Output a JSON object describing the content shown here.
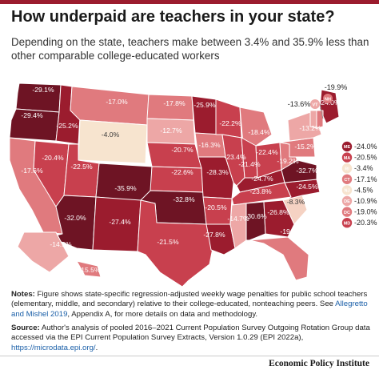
{
  "title": "How underpaid are teachers in your state?",
  "subtitle": "Depending on the state, teachers make between 3.4% and 35.9% less than other comparable college-educated workers",
  "colors": {
    "darkest": "#6e1424",
    "dark": "#9b1c2e",
    "mid": "#c8404e",
    "light": "#e07a7e",
    "lighter": "#eda7a6",
    "lightest": "#f5d2c3",
    "lowest": "#f7e4cf",
    "border": "#ffffff",
    "accent": "#9b1c2e"
  },
  "states": [
    {
      "id": "WA",
      "value": "-29.1%",
      "label": "-29.1%"
    },
    {
      "id": "OR",
      "value": "-29.4%",
      "label": "-29.4%"
    },
    {
      "id": "CA",
      "value": "-17.6%",
      "label": "-17.6%"
    },
    {
      "id": "NV",
      "value": "-20.4%",
      "label": "-20.4%"
    },
    {
      "id": "ID",
      "value": "-25.2%",
      "label": "-25.2%"
    },
    {
      "id": "MT",
      "value": "-17.0%",
      "label": "-17.0%"
    },
    {
      "id": "WY",
      "value": "-4.0%",
      "label": "-4.0%"
    },
    {
      "id": "UT",
      "value": "-22.5%",
      "label": "-22.5%"
    },
    {
      "id": "AZ",
      "value": "-32.0%",
      "label": "-32.0%"
    },
    {
      "id": "CO",
      "value": "-35.9%",
      "label": "-35.9%"
    },
    {
      "id": "NM",
      "value": "-27.4%",
      "label": "-27.4%"
    },
    {
      "id": "ND",
      "value": "-17.8%",
      "label": "-17.8%"
    },
    {
      "id": "SD",
      "value": "-12.7%",
      "label": "-12.7%"
    },
    {
      "id": "NE",
      "value": "-20.7%",
      "label": "-20.7%"
    },
    {
      "id": "KS",
      "value": "-22.6%",
      "label": "-22.6%"
    },
    {
      "id": "OK",
      "value": "-32.8%",
      "label": "-32.8%"
    },
    {
      "id": "TX",
      "value": "-21.5%",
      "label": "-21.5%"
    },
    {
      "id": "MN",
      "value": "-25.9%",
      "label": "-25.9%"
    },
    {
      "id": "IA",
      "value": "-16.3%",
      "label": "-16.3%"
    },
    {
      "id": "MO",
      "value": "-28.3%",
      "label": "-28.3%"
    },
    {
      "id": "AR",
      "value": "-20.5%",
      "label": "-20.5%"
    },
    {
      "id": "LA",
      "value": "-27.8%",
      "label": "-27.8%"
    },
    {
      "id": "WI",
      "value": "-22.2%",
      "label": "-22.2%"
    },
    {
      "id": "IL",
      "value": "-23.4%",
      "label": "-23.4%"
    },
    {
      "id": "MI",
      "value": "-18.4%",
      "label": "-18.4%"
    },
    {
      "id": "IN",
      "value": "-21.4%",
      "label": "-21.4%"
    },
    {
      "id": "OH",
      "value": "-22.4%",
      "label": "-22.4%"
    },
    {
      "id": "KY",
      "value": "-24.7%",
      "label": "-24.7%"
    },
    {
      "id": "TN",
      "value": "-23.8%",
      "label": "-23.8%"
    },
    {
      "id": "MS",
      "value": "-14.7%",
      "label": "-14.7%"
    },
    {
      "id": "AL",
      "value": "-30.6%",
      "label": "-30.6%"
    },
    {
      "id": "GA",
      "value": "-26.8%",
      "label": "-26.8%"
    },
    {
      "id": "FL",
      "value": "-19.6%",
      "label": "-19.6%"
    },
    {
      "id": "SC",
      "value": "-8.3%",
      "label": "-8.3%"
    },
    {
      "id": "NC",
      "value": "-24.5%",
      "label": "-24.5%"
    },
    {
      "id": "VA",
      "value": "-32.7%",
      "label": "-32.7%"
    },
    {
      "id": "WV",
      "value": "-19.2%",
      "label": "-19.2%"
    },
    {
      "id": "PA",
      "value": "-15.2%",
      "label": "-15.2%"
    },
    {
      "id": "NY",
      "value": "-13.2%",
      "label": "-13.2%"
    },
    {
      "id": "ME",
      "value": "-24.0%",
      "label": "-24.0%"
    },
    {
      "id": "AK",
      "value": "-14.9%",
      "label": "-14.9%"
    },
    {
      "id": "HI",
      "value": "-15.5%",
      "label": "-15.5%"
    },
    {
      "id": "NH",
      "value": "-19.9%",
      "label": "-19.9%"
    },
    {
      "id": "VT",
      "value": "-13.6%",
      "label": "-13.6%",
      "abbr": "VT"
    }
  ],
  "callout_nh": {
    "abbr": "NH",
    "label": "-19.9%"
  },
  "callout_vt": {
    "abbr": "VT",
    "label": "-13.6%"
  },
  "northeast_legend": [
    {
      "abbr": "ME",
      "label": "-24.0%"
    },
    {
      "abbr": "MA",
      "label": "-20.5%"
    },
    {
      "abbr": "RI",
      "label": "-3.4%"
    },
    {
      "abbr": "CT",
      "label": "-17.1%"
    },
    {
      "abbr": "NJ",
      "label": "-4.5%"
    },
    {
      "abbr": "DE",
      "label": "-10.9%"
    },
    {
      "abbr": "DC",
      "label": "-19.0%"
    },
    {
      "abbr": "MD",
      "label": "-20.3%"
    }
  ],
  "notes": {
    "heading": "Notes:",
    "text": "Figure shows state-specific regression-adjusted weekly wage penalties for public school teachers (elementary, middle, and secondary) relative to their college-educated, nonteaching peers. See",
    "link": "Allegretto and Mishel 2019",
    "tail": ", Appendix A, for more details on data and methodology."
  },
  "source": {
    "heading": "Source:",
    "text": "Author's analysis of pooled 2016–2021 Current Population Survey Outgoing Rotation Group data accessed via the EPI Current Population Survey Extracts, Version 1.0.29 (EPI 2022a),",
    "link": "https://microdata.epi.org/",
    "tail": "."
  },
  "brand": "Economic Policy Institute"
}
